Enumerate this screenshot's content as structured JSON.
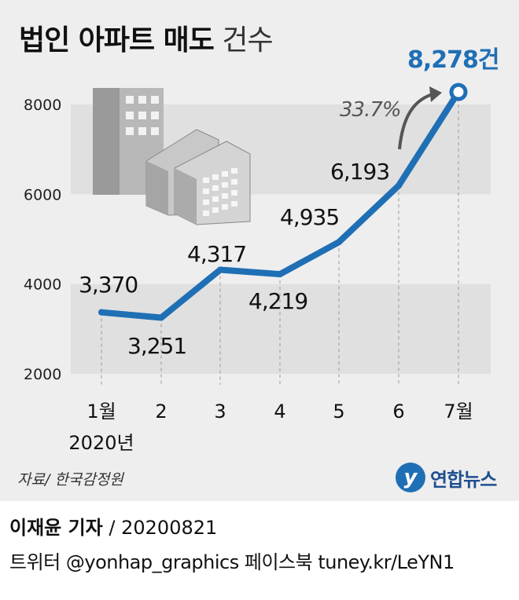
{
  "title": {
    "bold": "법인 아파트 매도",
    "light": "건수"
  },
  "source": "자료/ 한국감정원",
  "logo": {
    "text": "연합뉴스"
  },
  "byline": {
    "reporter": "이재윤 기자",
    "date": "/ 20200821"
  },
  "social": "트위터 @yonhap_graphics  페이스북 tuney.kr/LeYN1",
  "colors": {
    "line": "#1f6fb5",
    "band": "#e0e0e0",
    "panel": "#eeeeee",
    "arrow": "#555555"
  },
  "chart_data": {
    "type": "line",
    "title": "법인 아파트 매도 건수",
    "categories": [
      "1월",
      "2",
      "3",
      "4",
      "5",
      "6",
      "7월"
    ],
    "x_sublabel": "2020년",
    "values": [
      3370,
      3251,
      4317,
      4219,
      4935,
      6193,
      8278
    ],
    "value_labels": [
      "3,370",
      "3,251",
      "4,317",
      "4,219",
      "4,935",
      "6,193",
      "8,278건"
    ],
    "yticks": [
      2000,
      4000,
      6000,
      8000
    ],
    "ylim": [
      2000,
      8000
    ],
    "annotation": "33.7%",
    "grid": false,
    "banded_background": true
  }
}
